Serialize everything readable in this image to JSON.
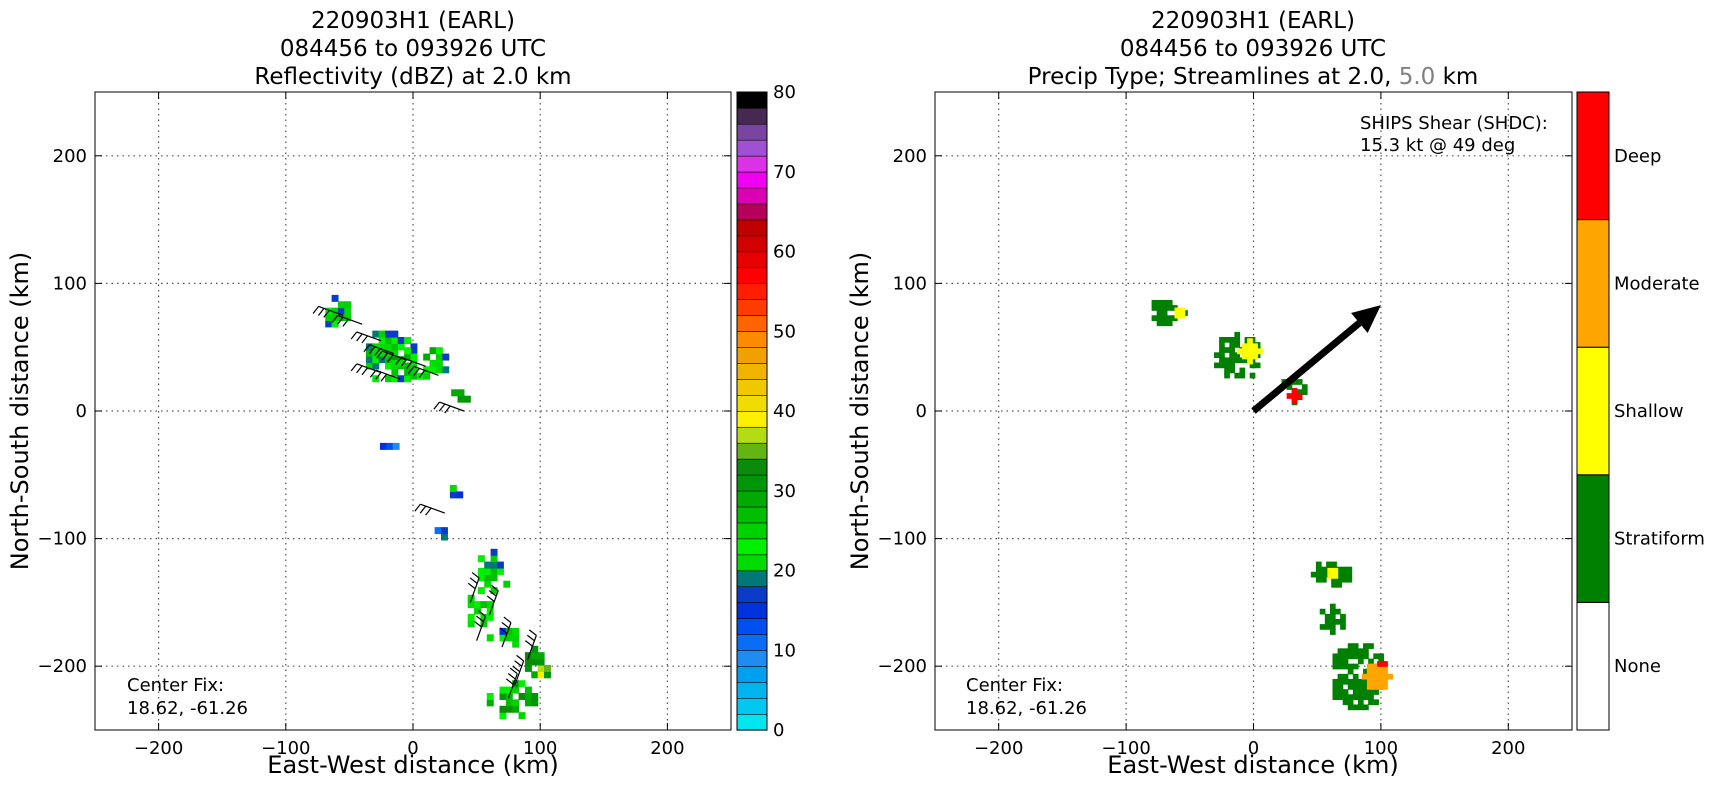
{
  "chart_data": [
    {
      "type": "heatmap",
      "title_lines": [
        "220903H1 (EARL)",
        "084456 to 093926 UTC",
        "Reflectivity (dBZ) at 2.0 km"
      ],
      "xlabel": "East-West distance (km)",
      "ylabel": "North-South distance (km)",
      "xlim": [
        -250,
        250
      ],
      "ylim": [
        -250,
        250
      ],
      "xticks": [
        -200,
        -100,
        0,
        100,
        200
      ],
      "yticks": [
        -200,
        -100,
        0,
        100,
        200
      ],
      "grid": true,
      "annotation": {
        "line1": "Center Fix:",
        "line2": "18.62, -61.26"
      },
      "colorbar": {
        "min": 0,
        "max": 80,
        "step": 2.5,
        "ticks": [
          0,
          10,
          20,
          30,
          40,
          50,
          60,
          70,
          80
        ],
        "colors": [
          "#00e5ee",
          "#00c8f0",
          "#00b4f0",
          "#00a0f0",
          "#1e8cf0",
          "#0a6ef5",
          "#0050f0",
          "#0032dc",
          "#0a3cc8",
          "#007878",
          "#00dc00",
          "#00f000",
          "#00d200",
          "#00be00",
          "#00aa00",
          "#00960a",
          "#0a8c0a",
          "#64b414",
          "#b4dc14",
          "#fff000",
          "#f0dc00",
          "#f0c800",
          "#f0b400",
          "#f0a000",
          "#ff8c00",
          "#ff6400",
          "#ff3c00",
          "#ff1e00",
          "#ff0000",
          "#e60000",
          "#d20000",
          "#be0000",
          "#b4005a",
          "#dc00b4",
          "#f000f0",
          "#dc32e6",
          "#a050d2",
          "#7846a0",
          "#462850",
          "#000000"
        ]
      },
      "regions": [
        {
          "x": -60,
          "y": 75,
          "rx": 14,
          "ry": 14,
          "dbz": 22
        },
        {
          "x": -20,
          "y": 40,
          "rx": 22,
          "ry": 22,
          "dbz": 25
        },
        {
          "x": 5,
          "y": 35,
          "rx": 22,
          "ry": 15,
          "dbz": 26
        },
        {
          "x": 35,
          "y": 10,
          "rx": 10,
          "ry": 8,
          "dbz": 33
        },
        {
          "x": -20,
          "y": -30,
          "rx": 6,
          "ry": 5,
          "dbz": 12
        },
        {
          "x": 30,
          "y": -70,
          "rx": 6,
          "ry": 8,
          "dbz": 18
        },
        {
          "x": 20,
          "y": -100,
          "rx": 8,
          "ry": 6,
          "dbz": 15
        },
        {
          "x": 60,
          "y": -130,
          "rx": 14,
          "ry": 18,
          "dbz": 24
        },
        {
          "x": 50,
          "y": -160,
          "rx": 12,
          "ry": 14,
          "dbz": 24
        },
        {
          "x": 70,
          "y": -180,
          "rx": 12,
          "ry": 10,
          "dbz": 22
        },
        {
          "x": 95,
          "y": -200,
          "rx": 12,
          "ry": 14,
          "dbz": 38
        },
        {
          "x": 75,
          "y": -230,
          "rx": 22,
          "ry": 16,
          "dbz": 32
        }
      ]
    },
    {
      "type": "heatmap",
      "title_lines": [
        "220903H1 (EARL)",
        "084456 to 093926 UTC"
      ],
      "title_line3": {
        "part1": "Precip Type; Streamlines at 2.0, ",
        "part2": "5.0",
        "part3": " km"
      },
      "xlabel": "East-West distance (km)",
      "ylabel": "North-South distance (km)",
      "xlim": [
        -250,
        250
      ],
      "ylim": [
        -250,
        250
      ],
      "xticks": [
        -200,
        -100,
        0,
        100,
        200
      ],
      "yticks": [
        -200,
        -100,
        0,
        100,
        200
      ],
      "grid": true,
      "annotation": {
        "line1": "Center Fix:",
        "line2": "18.62, -61.26"
      },
      "shear_note": {
        "line1": "SHIPS Shear (SHDC):",
        "line2": "15.3 kt @ 49 deg"
      },
      "shear_vector": {
        "from": [
          0,
          0
        ],
        "to": [
          100,
          83
        ]
      },
      "colorbar": {
        "categories": [
          "None",
          "Stratiform",
          "Shallow",
          "Moderate",
          "Deep"
        ],
        "colors": [
          "#ffffff",
          "#008000",
          "#ffff00",
          "#ffa500",
          "#ff0000"
        ]
      },
      "regions": [
        {
          "x": -70,
          "y": 75,
          "rx": 14,
          "ry": 12,
          "cat": 1
        },
        {
          "x": -60,
          "y": 75,
          "rx": 6,
          "ry": 6,
          "cat": 2
        },
        {
          "x": -15,
          "y": 40,
          "rx": 20,
          "ry": 18,
          "cat": 1
        },
        {
          "x": -5,
          "y": 45,
          "rx": 8,
          "ry": 8,
          "cat": 2
        },
        {
          "x": 30,
          "y": 15,
          "rx": 12,
          "ry": 10,
          "cat": 1
        },
        {
          "x": 30,
          "y": 10,
          "rx": 4,
          "ry": 4,
          "cat": 4
        },
        {
          "x": 60,
          "y": -130,
          "rx": 15,
          "ry": 12,
          "cat": 1
        },
        {
          "x": 60,
          "y": -130,
          "rx": 6,
          "ry": 5,
          "cat": 2
        },
        {
          "x": 60,
          "y": -165,
          "rx": 12,
          "ry": 10,
          "cat": 1
        },
        {
          "x": 80,
          "y": -210,
          "rx": 22,
          "ry": 28,
          "cat": 1
        },
        {
          "x": 95,
          "y": -210,
          "rx": 10,
          "ry": 12,
          "cat": 3
        },
        {
          "x": 100,
          "y": -200,
          "rx": 3,
          "ry": 4,
          "cat": 4
        }
      ]
    }
  ]
}
